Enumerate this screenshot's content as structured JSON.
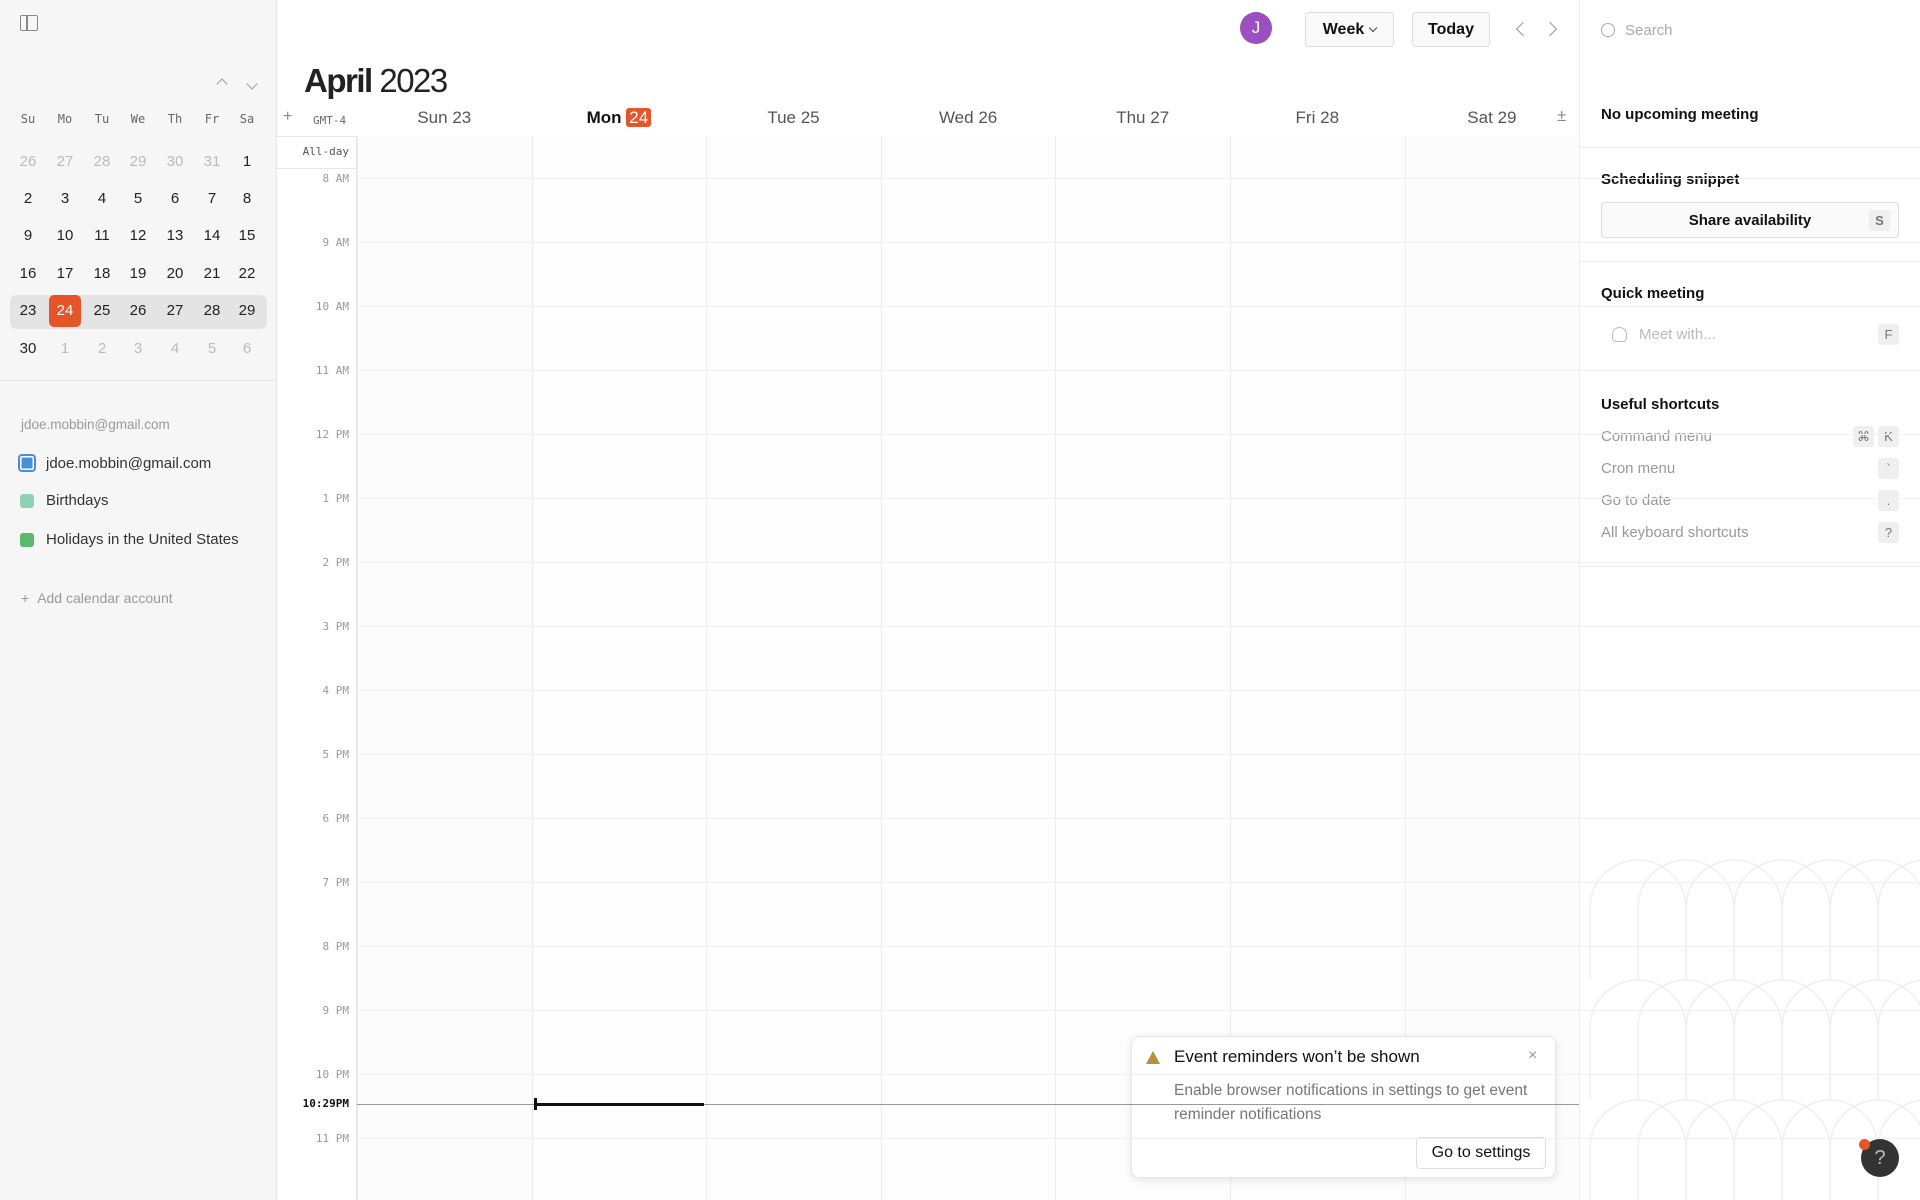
{
  "colors": {
    "accent": "#e5552a",
    "avatar": "#9b4fc0",
    "account": "#4a90d9",
    "birthdays": "#8fd3b6",
    "holidays": "#5cb86a"
  },
  "sidebar": {
    "mini_calendar": {
      "day_names": [
        "Su",
        "Mo",
        "Tu",
        "We",
        "Th",
        "Fr",
        "Sa"
      ],
      "weeks": [
        [
          {
            "d": "26",
            "out": true
          },
          {
            "d": "27",
            "out": true
          },
          {
            "d": "28",
            "out": true
          },
          {
            "d": "29",
            "out": true
          },
          {
            "d": "30",
            "out": true
          },
          {
            "d": "31",
            "out": true
          },
          {
            "d": "1"
          }
        ],
        [
          {
            "d": "2"
          },
          {
            "d": "3"
          },
          {
            "d": "4"
          },
          {
            "d": "5"
          },
          {
            "d": "6"
          },
          {
            "d": "7"
          },
          {
            "d": "8"
          }
        ],
        [
          {
            "d": "9"
          },
          {
            "d": "10"
          },
          {
            "d": "11"
          },
          {
            "d": "12"
          },
          {
            "d": "13"
          },
          {
            "d": "14"
          },
          {
            "d": "15"
          }
        ],
        [
          {
            "d": "16"
          },
          {
            "d": "17"
          },
          {
            "d": "18"
          },
          {
            "d": "19"
          },
          {
            "d": "20"
          },
          {
            "d": "21"
          },
          {
            "d": "22"
          }
        ],
        [
          {
            "d": "23"
          },
          {
            "d": "24",
            "today": true
          },
          {
            "d": "25"
          },
          {
            "d": "26"
          },
          {
            "d": "27"
          },
          {
            "d": "28"
          },
          {
            "d": "29"
          }
        ],
        [
          {
            "d": "30"
          },
          {
            "d": "1",
            "out": true
          },
          {
            "d": "2",
            "out": true
          },
          {
            "d": "3",
            "out": true
          },
          {
            "d": "4",
            "out": true
          },
          {
            "d": "5",
            "out": true
          },
          {
            "d": "6",
            "out": true
          }
        ]
      ],
      "selected_week_index": 4
    },
    "account_label": "jdoe.mobbin@gmail.com",
    "calendars": [
      {
        "label": "jdoe.mobbin@gmail.com",
        "icon": "checkbox-icon"
      },
      {
        "label": "Birthdays",
        "icon": "rss-icon"
      },
      {
        "label": "Holidays in the United States",
        "icon": "rss-icon"
      }
    ],
    "add_account": "Add calendar account"
  },
  "header": {
    "avatar_initial": "J",
    "view_select": "Week",
    "today_label": "Today",
    "month": "April",
    "year": "2023",
    "timezone": "GMT-4",
    "all_day": "All-day",
    "days": [
      {
        "name": "Sun",
        "num": "23"
      },
      {
        "name": "Mon",
        "num": "24",
        "today": true
      },
      {
        "name": "Tue",
        "num": "25"
      },
      {
        "name": "Wed",
        "num": "26"
      },
      {
        "name": "Thu",
        "num": "27"
      },
      {
        "name": "Fri",
        "num": "28"
      },
      {
        "name": "Sat",
        "num": "29"
      }
    ]
  },
  "grid": {
    "hours": [
      "8 AM",
      "9 AM",
      "10 AM",
      "11 AM",
      "12 PM",
      "1 PM",
      "2 PM",
      "3 PM",
      "4 PM",
      "5 PM",
      "6 PM",
      "7 PM",
      "8 PM",
      "9 PM",
      "10 PM",
      "11 PM"
    ],
    "current_time": "10:29PM",
    "current_time_hours": 22.483
  },
  "right": {
    "search_placeholder": "Search",
    "no_meeting": "No upcoming meeting",
    "snippet_title": "Scheduling snippet",
    "share_label": "Share availability",
    "share_key": "S",
    "quick_title": "Quick meeting",
    "meet_placeholder": "Meet with...",
    "meet_key": "F",
    "shortcuts_title": "Useful shortcuts",
    "shortcuts": [
      {
        "label": "Command menu",
        "keys": [
          "⌘",
          "K"
        ]
      },
      {
        "label": "Cron menu",
        "keys": [
          "`"
        ]
      },
      {
        "label": "Go to date",
        "keys": [
          "."
        ]
      },
      {
        "label": "All keyboard shortcuts",
        "keys": [
          "?"
        ]
      }
    ]
  },
  "toast": {
    "title": "Event reminders won’t be shown",
    "body": "Enable browser notifications in settings to get event reminder notifications",
    "button": "Go to settings"
  },
  "help": {
    "label": "?"
  }
}
